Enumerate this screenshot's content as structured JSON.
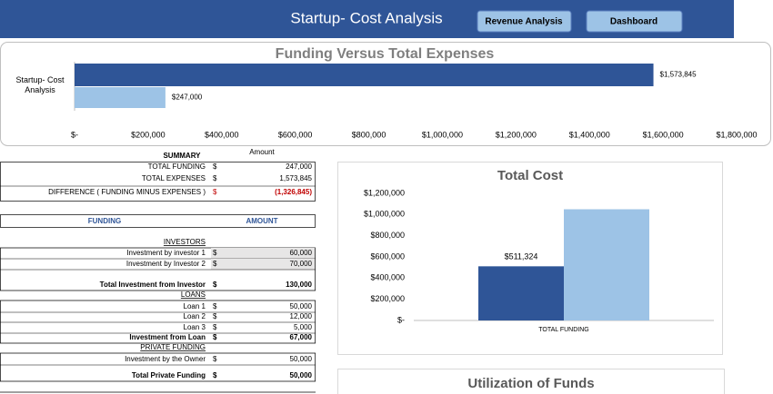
{
  "header": {
    "title": "Startup- Cost Analysis",
    "buttons": [
      "Revenue Analysis",
      "Dashboard"
    ]
  },
  "chart_data": [
    {
      "type": "hbar",
      "title": "Funding Versus Total Expenses",
      "categories": [
        "Startup- Cost Analysis"
      ],
      "series": [
        {
          "color": "#2f5597",
          "values": [
            1573845
          ],
          "value_labels": [
            "$1,573,845"
          ]
        },
        {
          "color": "#9dc3e6",
          "values": [
            247000
          ],
          "value_labels": [
            "$247,000"
          ]
        }
      ],
      "xlim": [
        0,
        1800000
      ],
      "xticks": [
        {
          "value": 0,
          "label": "$-"
        },
        {
          "value": 200000,
          "label": "$200,000"
        },
        {
          "value": 400000,
          "label": "$400,000"
        },
        {
          "value": 600000,
          "label": "$600,000"
        },
        {
          "value": 800000,
          "label": "$800,000"
        },
        {
          "value": 1000000,
          "label": "$1,000,000"
        },
        {
          "value": 1200000,
          "label": "$1,200,000"
        },
        {
          "value": 1400000,
          "label": "$1,400,000"
        },
        {
          "value": 1600000,
          "label": "$1,600,000"
        },
        {
          "value": 1800000,
          "label": "$1,800,000"
        }
      ]
    },
    {
      "type": "bar",
      "title": "Total Cost",
      "categories": [
        "TOTAL FUNDING"
      ],
      "series": [
        {
          "color": "#2f5597",
          "values": [
            511324
          ],
          "value_labels": [
            "$511,324"
          ]
        },
        {
          "color": "#9dc3e6",
          "values": [
            1050000
          ]
        }
      ],
      "ylim": [
        0,
        1200000
      ],
      "yticks": [
        {
          "value": 0,
          "label": "$-"
        },
        {
          "value": 200000,
          "label": "$200,000"
        },
        {
          "value": 400000,
          "label": "$400,000"
        },
        {
          "value": 600000,
          "label": "$600,000"
        },
        {
          "value": 800000,
          "label": "$800,000"
        },
        {
          "value": 1000000,
          "label": "$1,000,000"
        },
        {
          "value": 1200000,
          "label": "$1,200,000"
        }
      ]
    },
    {
      "type": "pie",
      "title": "Utilization of Funds"
    }
  ],
  "summary": {
    "title": "SUMMARY",
    "amount_header": "Amount",
    "rows": [
      [
        "TOTAL FUNDING",
        "$",
        "247,000"
      ],
      [
        "TOTAL EXPENSES",
        "$",
        "1,573,845"
      ],
      [
        "DIFFERENCE  ( FUNDING MINUS EXPENSES )",
        "$",
        "(1,326,845)"
      ]
    ]
  },
  "funding": {
    "headers": [
      "FUNDING",
      "AMOUNT"
    ],
    "sections": [
      {
        "title": "INVESTORS",
        "rows": [
          [
            "Investment by investor 1",
            "$",
            "60,000"
          ],
          [
            "Investment by Investor 2",
            "$",
            "70,000"
          ]
        ],
        "total": [
          "Total Investment from Investor",
          "$",
          "130,000"
        ]
      },
      {
        "title": "LOANS",
        "rows": [
          [
            "Loan 1",
            "$",
            "50,000"
          ],
          [
            "Loan 2",
            "$",
            "12,000"
          ],
          [
            "Loan 3",
            "$",
            "5,000"
          ]
        ],
        "total": [
          "Investment from Loan",
          "$",
          "67,000"
        ]
      },
      {
        "title": "PRIVATE FUNDING",
        "rows": [
          [
            "Investment by the Owner",
            "$",
            "50,000"
          ]
        ],
        "total": [
          "Total Private Funding",
          "$",
          "50,000"
        ]
      }
    ]
  }
}
